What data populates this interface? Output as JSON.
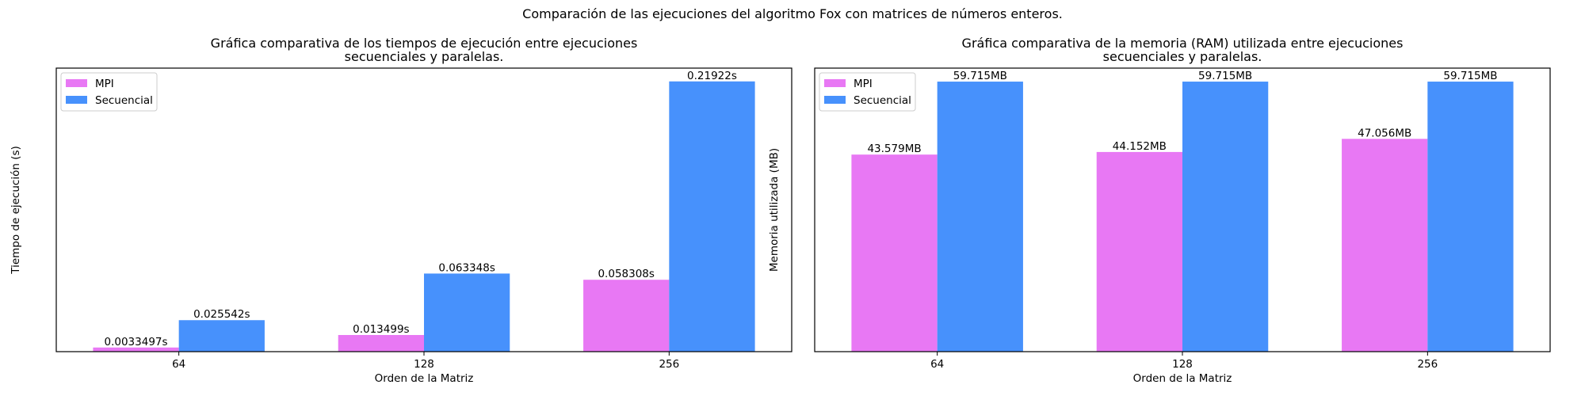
{
  "suptitle": "Comparación de las ejecuciones del algoritmo Fox con matrices de números enteros.",
  "colors": {
    "mpi": "#E878F4",
    "secuencial": "#4791FC",
    "axis": "#000000"
  },
  "chart_data": [
    {
      "type": "bar",
      "title_lines": [
        "Gráfica comparativa de los tiempos de ejecución entre ejecuciones",
        "secuenciales y paralelas."
      ],
      "xlabel": "Orden de la Matriz",
      "ylabel": "Tiempo de ejecución (s)",
      "categories": [
        "64",
        "128",
        "256"
      ],
      "ylim": [
        0,
        0.23
      ],
      "legend_position": "upper-left",
      "series": [
        {
          "name": "MPI",
          "values": [
            0.0033497,
            0.013499,
            0.058308
          ],
          "labels": [
            "0.0033497s",
            "0.013499s",
            "0.058308s"
          ]
        },
        {
          "name": "Secuencial",
          "values": [
            0.025542,
            0.063348,
            0.21922
          ],
          "labels": [
            "0.025542s",
            "0.063348s",
            "0.21922s"
          ]
        }
      ]
    },
    {
      "type": "bar",
      "title_lines": [
        "Gráfica comparativa de la memoria (RAM) utilizada entre ejecuciones",
        "secuenciales y paralelas."
      ],
      "xlabel": "Orden de la Matriz",
      "ylabel": "Memoria utilizada (MB)",
      "categories": [
        "64",
        "128",
        "256"
      ],
      "ylim": [
        0,
        62.7
      ],
      "legend_position": "upper-left",
      "series": [
        {
          "name": "MPI",
          "values": [
            43.579,
            44.152,
            47.056
          ],
          "labels": [
            "43.579MB",
            "44.152MB",
            "47.056MB"
          ]
        },
        {
          "name": "Secuencial",
          "values": [
            59.715,
            59.715,
            59.715
          ],
          "labels": [
            "59.715MB",
            "59.715MB",
            "59.715MB"
          ]
        }
      ]
    }
  ]
}
